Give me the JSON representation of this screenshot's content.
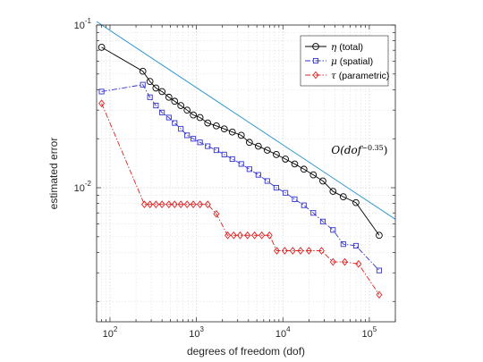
{
  "chart_data": {
    "type": "line",
    "xscale": "log",
    "yscale": "log",
    "xlabel": "degrees of freedom (dof)",
    "ylabel": "estimated error",
    "xlim": [
      70,
      200000
    ],
    "ylim": [
      0.0015,
      0.1
    ],
    "grid": true,
    "legend_position": "top-right",
    "x_ticks": [
      {
        "value": 100,
        "base": "10",
        "exp": "2"
      },
      {
        "value": 1000,
        "base": "10",
        "exp": "3"
      },
      {
        "value": 10000,
        "base": "10",
        "exp": "4"
      },
      {
        "value": 100000,
        "base": "10",
        "exp": "5"
      }
    ],
    "y_ticks": [
      {
        "value": 0.01,
        "base": "10",
        "exp": "-2"
      },
      {
        "value": 0.1,
        "base": "10",
        "exp": "-1"
      }
    ],
    "series": [
      {
        "name": "η (total)",
        "symbol": "η",
        "label_suffix": " (total)",
        "color": "#000000",
        "line_style": "solid",
        "marker": "circle",
        "x": [
          80,
          240,
          290,
          340,
          400,
          480,
          560,
          660,
          780,
          920,
          1100,
          1350,
          1700,
          2100,
          2600,
          3300,
          4100,
          5200,
          6600,
          8400,
          10700,
          13700,
          17500,
          22500,
          29000,
          38000,
          50000,
          70000,
          130000
        ],
        "y": [
          0.073,
          0.052,
          0.045,
          0.041,
          0.039,
          0.036,
          0.034,
          0.032,
          0.03,
          0.028,
          0.027,
          0.025,
          0.024,
          0.023,
          0.022,
          0.021,
          0.019,
          0.018,
          0.017,
          0.016,
          0.015,
          0.014,
          0.013,
          0.012,
          0.011,
          0.0095,
          0.0088,
          0.0081,
          0.0051
        ]
      },
      {
        "name": "μ (spatial)",
        "symbol": "μ",
        "label_suffix": " (spatial)",
        "color": "#3333cc",
        "line_style": "dashdot",
        "marker": "square",
        "x": [
          80,
          240,
          290,
          340,
          400,
          480,
          560,
          660,
          780,
          920,
          1100,
          1350,
          1700,
          2100,
          2600,
          3300,
          4100,
          5200,
          6600,
          8400,
          10700,
          13700,
          17500,
          22500,
          29000,
          38000,
          50000,
          70000,
          130000
        ],
        "y": [
          0.039,
          0.043,
          0.036,
          0.032,
          0.029,
          0.027,
          0.025,
          0.023,
          0.021,
          0.02,
          0.019,
          0.018,
          0.017,
          0.016,
          0.015,
          0.014,
          0.013,
          0.012,
          0.011,
          0.01,
          0.0093,
          0.0085,
          0.0078,
          0.007,
          0.0062,
          0.0055,
          0.0045,
          0.0044,
          0.0031
        ]
      },
      {
        "name": "τ (parametric)",
        "symbol": "τ",
        "label_suffix": " (parametric)",
        "color": "#e02020",
        "line_style": "dashdot",
        "marker": "diamond",
        "x": [
          80,
          250,
          290,
          340,
          400,
          480,
          560,
          660,
          780,
          920,
          1100,
          1350,
          1700,
          2300,
          2700,
          3200,
          3900,
          4700,
          5700,
          7000,
          8500,
          10500,
          13000,
          16000,
          20000,
          28000,
          38000,
          52000,
          75000,
          130000
        ],
        "y": [
          0.033,
          0.0079,
          0.0079,
          0.0079,
          0.0079,
          0.0079,
          0.0079,
          0.0079,
          0.0079,
          0.0079,
          0.0079,
          0.0079,
          0.0069,
          0.0051,
          0.0051,
          0.0051,
          0.0051,
          0.0051,
          0.0051,
          0.0051,
          0.0041,
          0.0041,
          0.0041,
          0.0041,
          0.0041,
          0.0041,
          0.0035,
          0.0035,
          0.0034,
          0.0022
        ]
      }
    ],
    "reference_line": {
      "color": "#3399cc",
      "slope": -0.35,
      "x": [
        70,
        200000
      ],
      "y": [
        0.105,
        0.0064
      ],
      "label_main": "O(dof",
      "label_exp": "−0.35",
      "label_close": ")"
    }
  }
}
